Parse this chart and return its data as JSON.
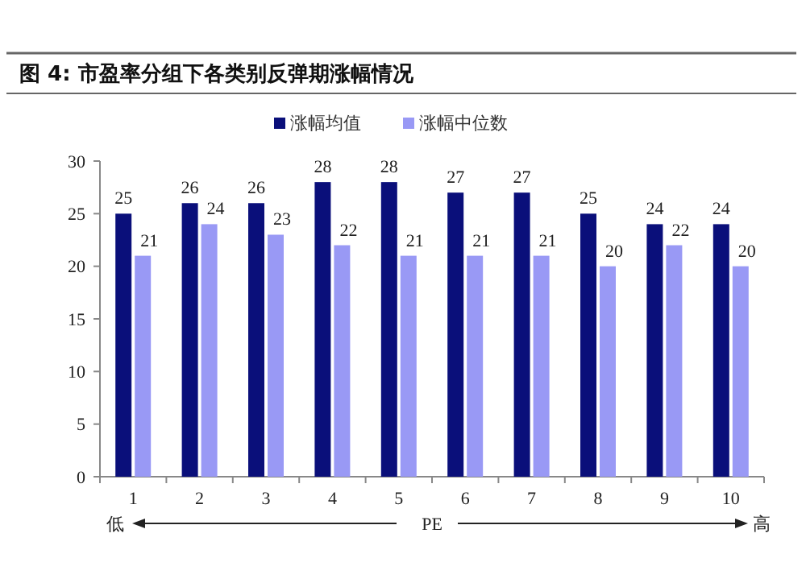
{
  "chart_data": {
    "type": "bar",
    "title": "图 4:  市盈率分组下各类别反弹期涨幅情况",
    "xlabel": "PE",
    "annotations": [
      "低",
      "高"
    ],
    "categories": [
      "1",
      "2",
      "3",
      "4",
      "5",
      "6",
      "7",
      "8",
      "9",
      "10"
    ],
    "series": [
      {
        "name": "涨幅均值",
        "color": "#0a0f7a",
        "values": [
          25,
          26,
          26,
          28,
          28,
          27,
          27,
          25,
          24,
          24
        ]
      },
      {
        "name": "涨幅中位数",
        "color": "#9999f5",
        "values": [
          21,
          24,
          23,
          22,
          21,
          21,
          21,
          20,
          22,
          20
        ]
      }
    ],
    "ylim": [
      0,
      30
    ],
    "yticks": [
      0,
      5,
      10,
      15,
      20,
      25,
      30
    ],
    "data_labels": true,
    "legend": "top",
    "grid": false
  }
}
